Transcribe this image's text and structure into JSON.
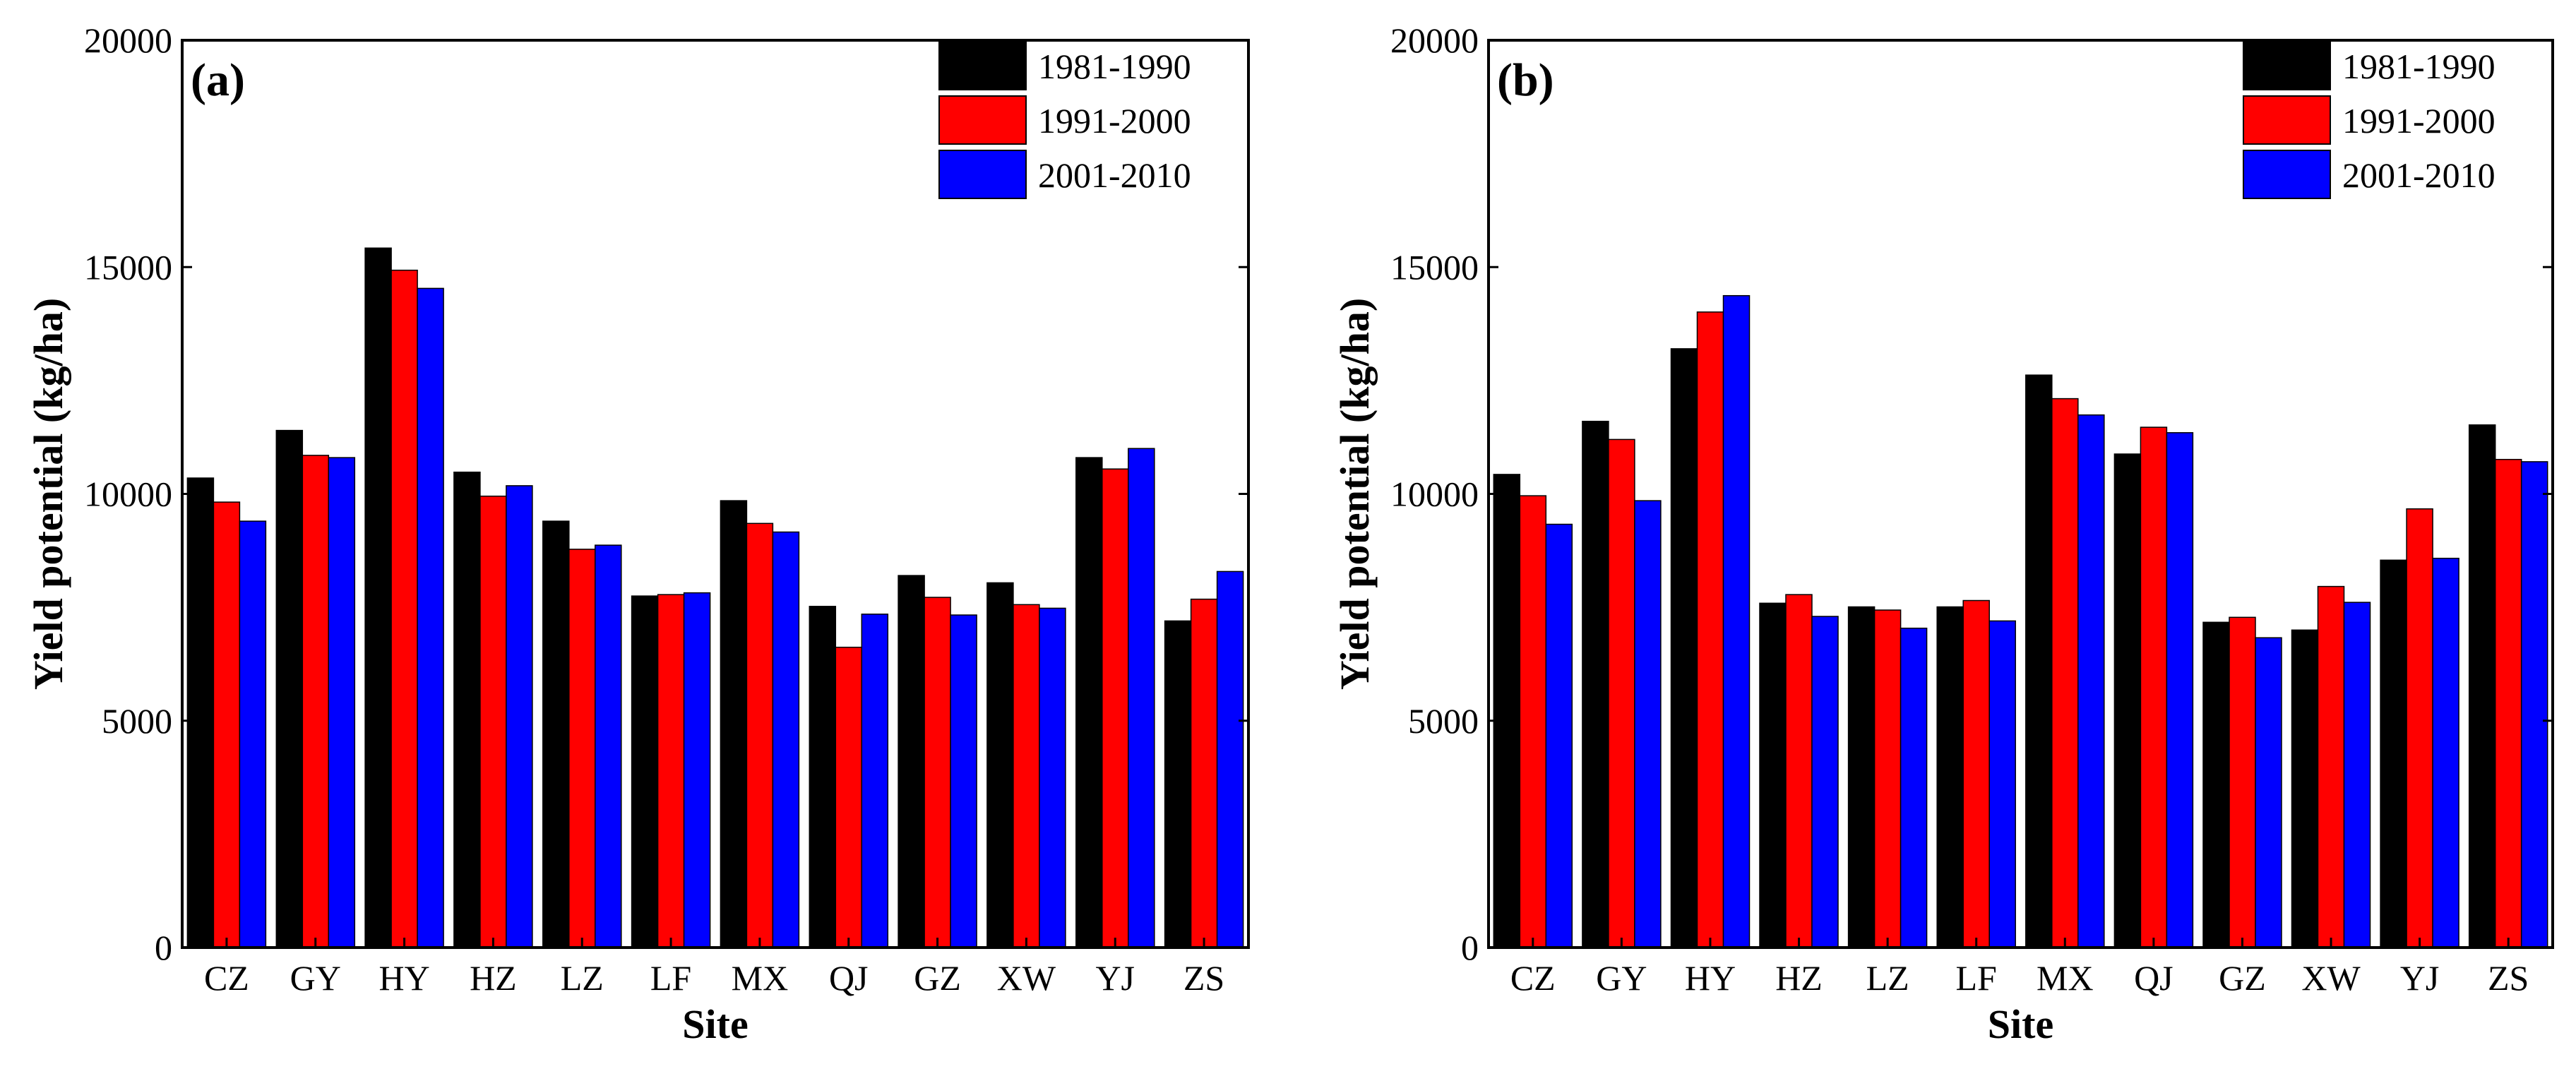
{
  "chart_data": [
    {
      "type": "bar",
      "label": "(a)",
      "categories": [
        "CZ",
        "GY",
        "HY",
        "HZ",
        "LZ",
        "LF",
        "MX",
        "QJ",
        "GZ",
        "XW",
        "YJ",
        "ZS"
      ],
      "series": [
        {
          "name": "1981-1990",
          "color": "#000000",
          "values": [
            10350,
            11400,
            15420,
            10480,
            9400,
            7750,
            9850,
            7520,
            8200,
            8040,
            10800,
            7200
          ]
        },
        {
          "name": "1991-2000",
          "color": "#ff0000",
          "values": [
            9820,
            10850,
            14930,
            9950,
            8780,
            7780,
            9350,
            6620,
            7720,
            7560,
            10550,
            7680
          ]
        },
        {
          "name": "2001-2010",
          "color": "#0000ff",
          "values": [
            9400,
            10800,
            14530,
            10180,
            8870,
            7820,
            9160,
            7350,
            7330,
            7480,
            11000,
            8290
          ]
        }
      ],
      "xlabel": "Site",
      "ylabel": "Yield potential (kg/ha)",
      "ylim": [
        0,
        20000
      ],
      "yticks": [
        "0",
        "5000",
        "10000",
        "15000",
        "20000"
      ],
      "legend": "top-right"
    },
    {
      "type": "bar",
      "label": "(b)",
      "categories": [
        "CZ",
        "GY",
        "HY",
        "HZ",
        "LZ",
        "LF",
        "MX",
        "QJ",
        "GZ",
        "XW",
        "YJ",
        "ZS"
      ],
      "series": [
        {
          "name": "1981-1990",
          "color": "#000000",
          "values": [
            10430,
            11600,
            13200,
            7590,
            7510,
            7510,
            12620,
            10880,
            7170,
            7000,
            8540,
            11520
          ]
        },
        {
          "name": "1991-2000",
          "color": "#ff0000",
          "values": [
            9960,
            11200,
            14010,
            7780,
            7440,
            7650,
            12100,
            11470,
            7280,
            7960,
            9670,
            10760
          ]
        },
        {
          "name": "2001-2010",
          "color": "#0000ff",
          "values": [
            9330,
            9850,
            14370,
            7300,
            7040,
            7200,
            11740,
            11350,
            6830,
            7610,
            8580,
            10710
          ]
        }
      ],
      "xlabel": "Site",
      "ylabel": "Yield potential (kg/ha)",
      "ylim": [
        0,
        20000
      ],
      "yticks": [
        "0",
        "5000",
        "10000",
        "15000",
        "20000"
      ],
      "legend": "top-right"
    }
  ]
}
